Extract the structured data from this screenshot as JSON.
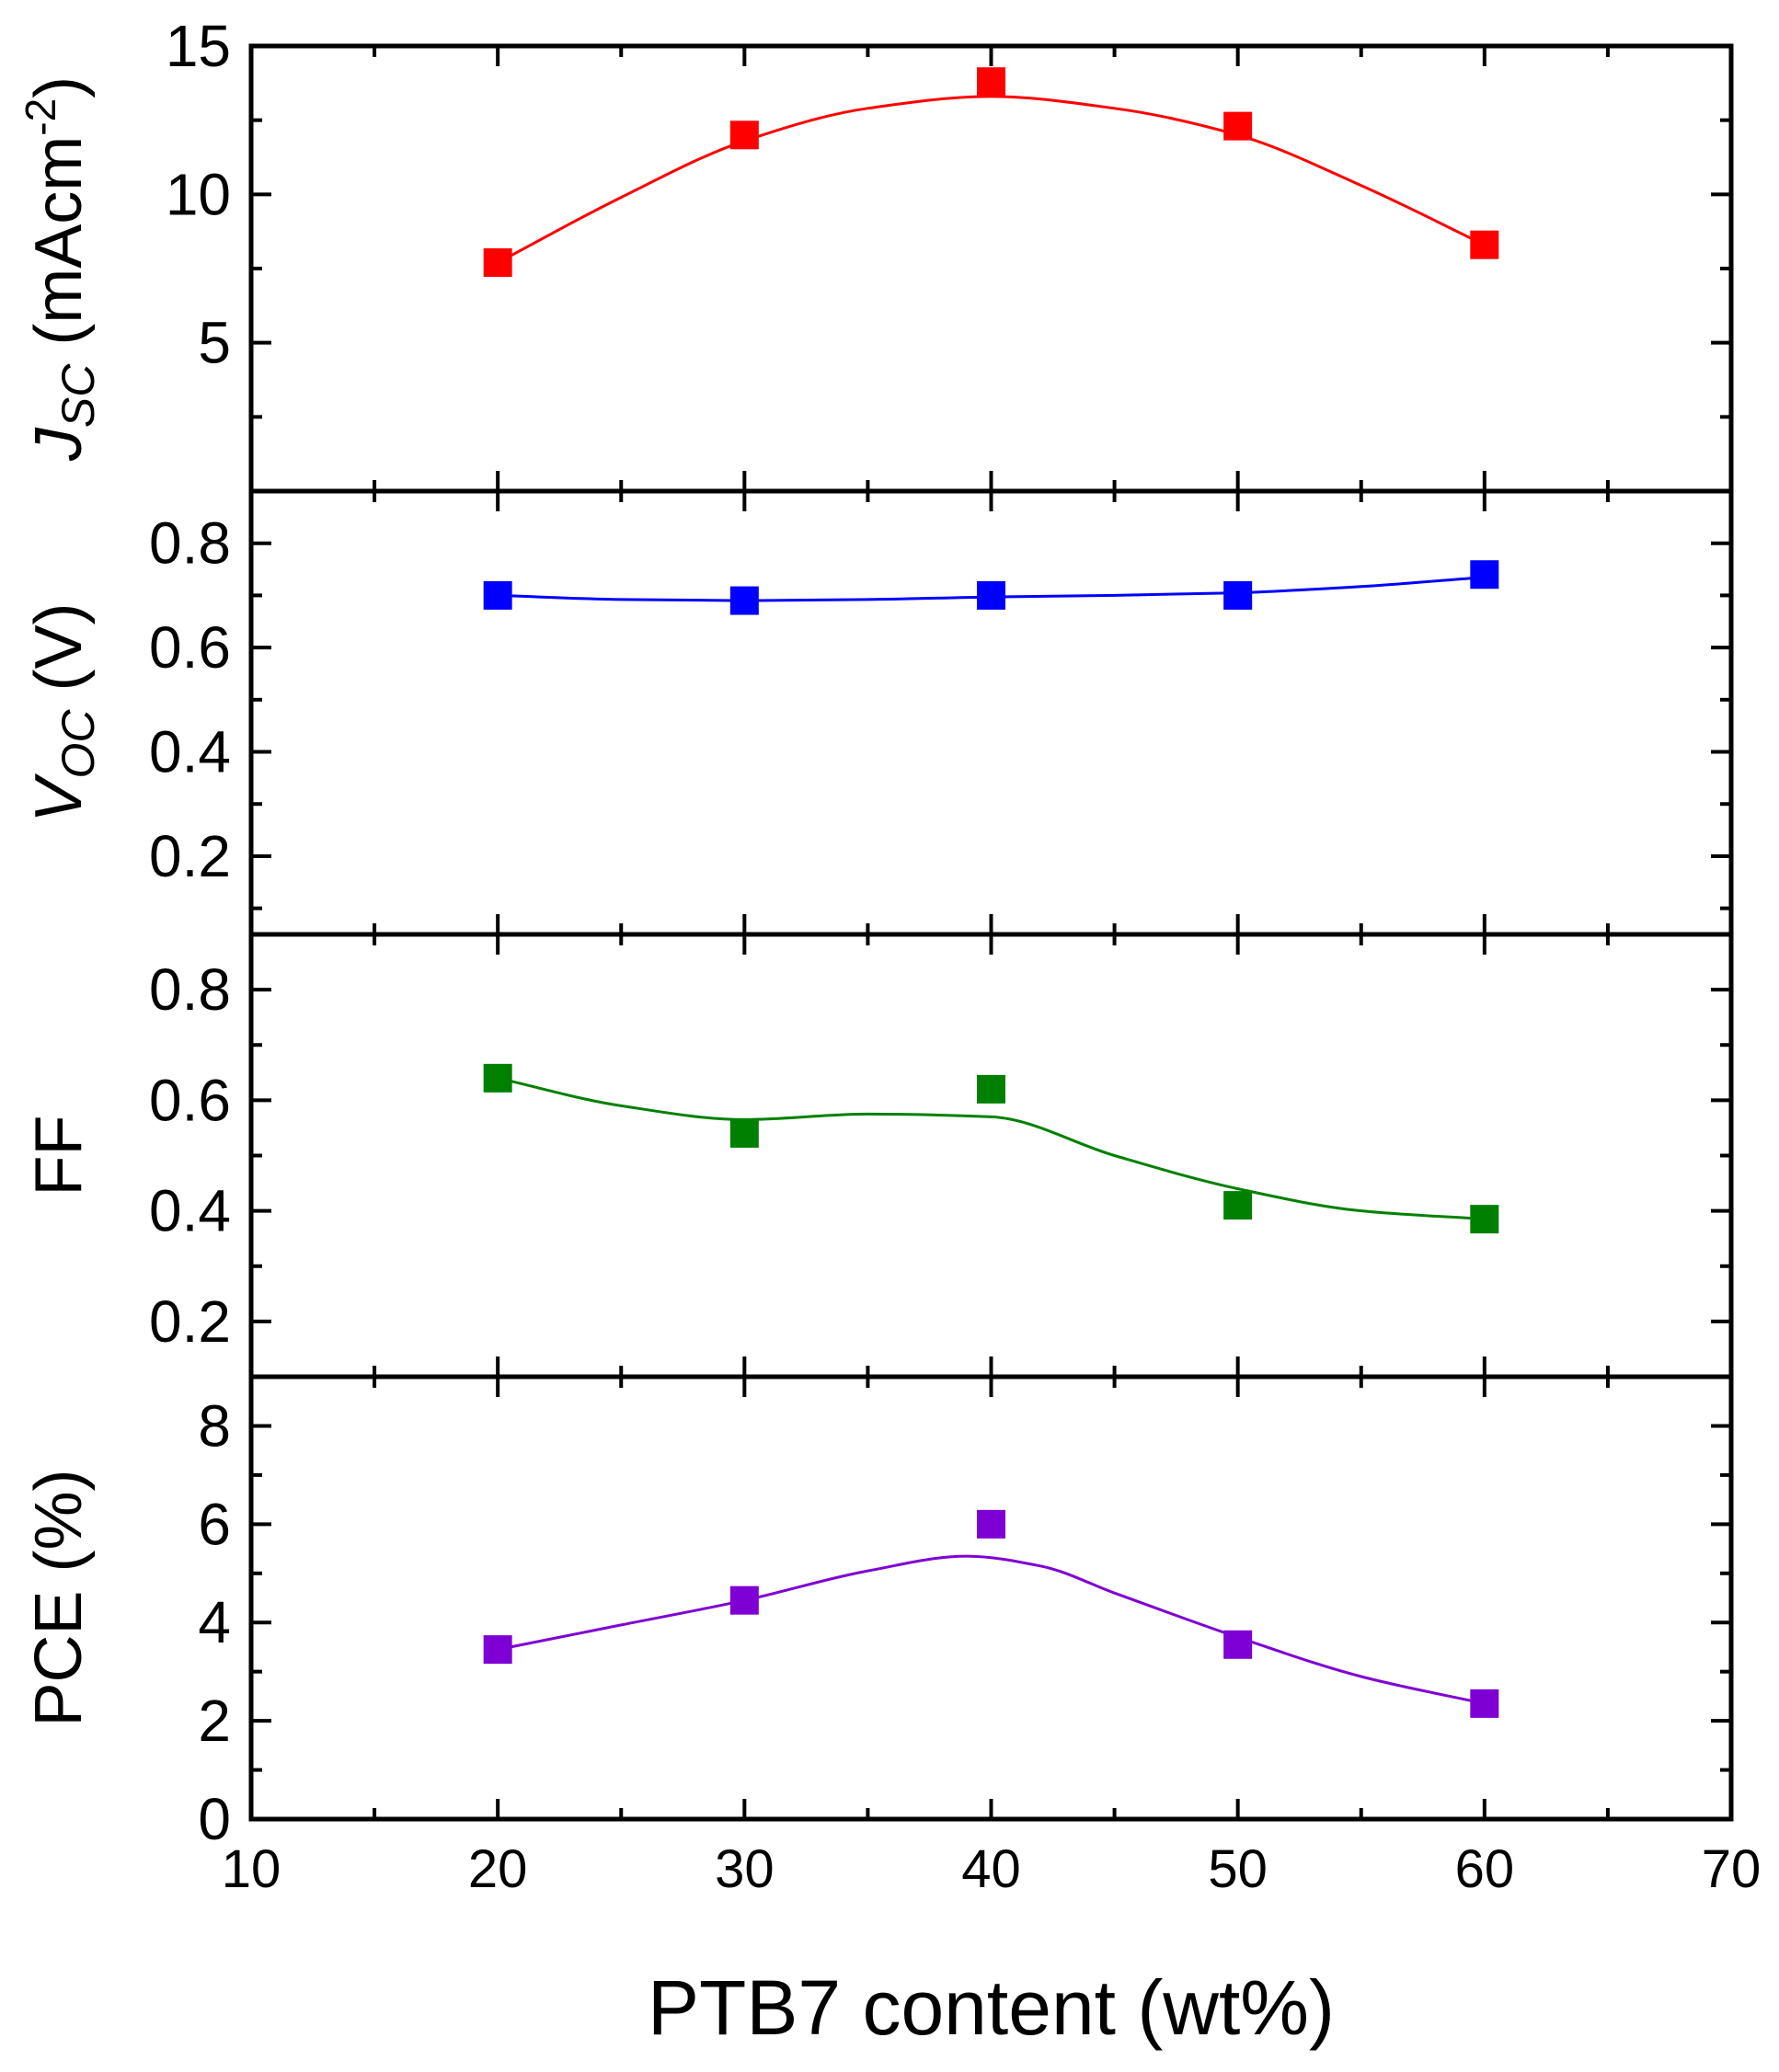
{
  "chart_data": {
    "type": "scatter",
    "layout": "stacked-panels-shared-x",
    "xlabel": "PTB7 content (wt%)",
    "xlim": [
      10,
      70
    ],
    "xticks": [
      "10",
      "20",
      "30",
      "40",
      "50",
      "60",
      "70"
    ],
    "panels": [
      {
        "id": "jsc",
        "ylabel": {
          "main": "J",
          "sub": "SC",
          "unit_prefix": " (mAcm",
          "unit_sup": "-2",
          "unit_suffix": ")"
        },
        "ylim": [
          0,
          15
        ],
        "yticks": [
          "5",
          "10",
          "15"
        ],
        "color": "#ff0000",
        "series": {
          "name": "Jsc",
          "x": [
            20,
            30,
            40,
            50,
            60
          ],
          "y": [
            7.7,
            12.0,
            13.8,
            12.3,
            8.3
          ]
        },
        "fit": {
          "x": [
            20,
            25,
            30,
            35,
            40,
            45,
            50,
            55,
            60
          ],
          "y": [
            7.7,
            9.9,
            11.8,
            12.9,
            13.3,
            12.9,
            12.0,
            10.3,
            8.3
          ]
        }
      },
      {
        "id": "voc",
        "ylabel": {
          "main": "V",
          "sub": "OC",
          "unit_prefix": " (V)",
          "unit_sup": "",
          "unit_suffix": ""
        },
        "ylim": [
          0.05,
          0.9
        ],
        "yticks": [
          "0.2",
          "0.4",
          "0.6",
          "0.8"
        ],
        "color": "#0000ff",
        "series": {
          "name": "Voc",
          "x": [
            20,
            30,
            40,
            50,
            60
          ],
          "y": [
            0.7,
            0.69,
            0.7,
            0.7,
            0.74
          ]
        },
        "fit": {
          "x": [
            20,
            25,
            30,
            35,
            40,
            45,
            50,
            55,
            60
          ],
          "y": [
            0.7,
            0.692,
            0.69,
            0.692,
            0.697,
            0.7,
            0.705,
            0.717,
            0.735
          ]
        }
      },
      {
        "id": "ff",
        "ylabel": {
          "main": "FF",
          "sub": "",
          "unit_prefix": "",
          "unit_sup": "",
          "unit_suffix": ""
        },
        "ylim": [
          0.1,
          0.9
        ],
        "yticks": [
          "0.2",
          "0.4",
          "0.6",
          "0.8"
        ],
        "color": "#008000",
        "series": {
          "name": "FF",
          "x": [
            20,
            30,
            40,
            50,
            60
          ],
          "y": [
            0.64,
            0.54,
            0.62,
            0.41,
            0.385
          ]
        },
        "fit": {
          "x": [
            20,
            25,
            30,
            35,
            40,
            45,
            50,
            55,
            60
          ],
          "y": [
            0.64,
            0.59,
            0.565,
            0.575,
            0.57,
            0.5,
            0.44,
            0.4,
            0.385
          ]
        }
      },
      {
        "id": "pce",
        "ylabel": {
          "main": "PCE (%)",
          "sub": "",
          "unit_prefix": "",
          "unit_sup": "",
          "unit_suffix": ""
        },
        "ylim": [
          0,
          9
        ],
        "yticks": [
          "0",
          "2",
          "4",
          "6",
          "8"
        ],
        "color": "#7f00d4",
        "series": {
          "name": "PCE",
          "x": [
            20,
            30,
            40,
            50,
            60
          ],
          "y": [
            3.45,
            4.45,
            6.0,
            3.55,
            2.35
          ]
        },
        "fit": {
          "x": [
            20,
            25,
            30,
            35,
            39,
            42,
            45,
            50,
            55,
            60
          ],
          "y": [
            3.45,
            3.95,
            4.45,
            5.05,
            5.35,
            5.15,
            4.6,
            3.7,
            2.9,
            2.35
          ]
        }
      }
    ]
  }
}
